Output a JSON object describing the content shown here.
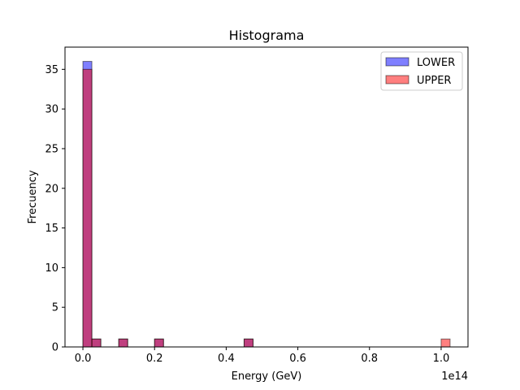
{
  "chart_data": {
    "type": "bar",
    "title": "Histograma",
    "xlabel": "Energy (GeV)",
    "ylabel": "Frecuency",
    "x_offset_label": "1e14",
    "xlim": [
      -0.05,
      1.075
    ],
    "ylim": [
      0,
      37.8
    ],
    "xticks": [
      0.0,
      0.2,
      0.4,
      0.6,
      0.8,
      1.0
    ],
    "xtick_labels": [
      "0.0",
      "0.2",
      "0.4",
      "0.6",
      "0.8",
      "1.0"
    ],
    "yticks": [
      0,
      5,
      10,
      15,
      20,
      25,
      30,
      35
    ],
    "bin_width": 0.025,
    "series": [
      {
        "name": "LOWER",
        "color": "#0000ff",
        "alpha": 0.5,
        "bins": [
          {
            "x": 0.0,
            "count": 36
          },
          {
            "x": 0.025,
            "count": 1
          },
          {
            "x": 0.1,
            "count": 1
          },
          {
            "x": 0.2,
            "count": 1
          },
          {
            "x": 0.45,
            "count": 1
          }
        ]
      },
      {
        "name": "UPPER",
        "color": "#ff0000",
        "alpha": 0.5,
        "bins": [
          {
            "x": 0.0,
            "count": 35
          },
          {
            "x": 0.025,
            "count": 1
          },
          {
            "x": 0.1,
            "count": 1
          },
          {
            "x": 0.2,
            "count": 1
          },
          {
            "x": 0.45,
            "count": 1
          },
          {
            "x": 1.0,
            "count": 1
          }
        ]
      }
    ],
    "legend_position": "top-right",
    "grid": false
  }
}
